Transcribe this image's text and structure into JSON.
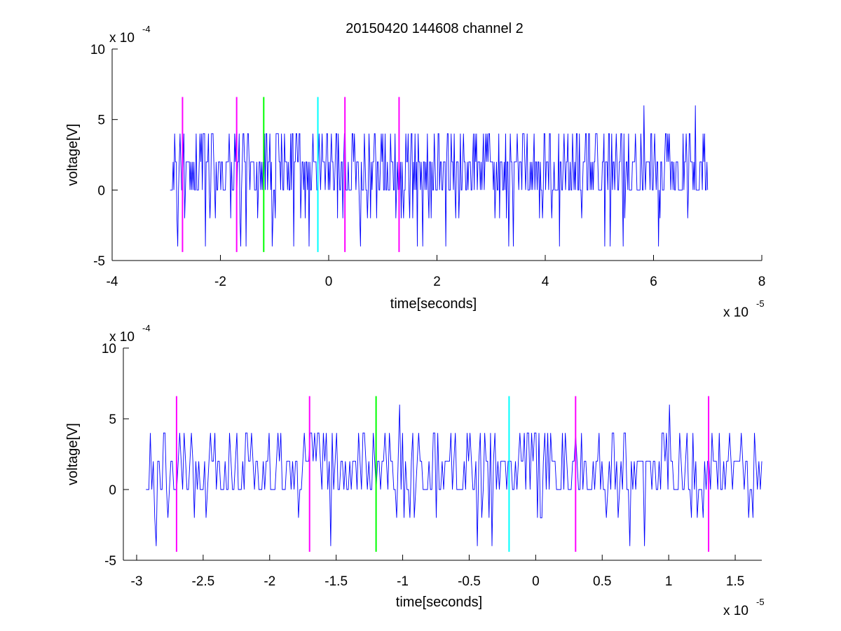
{
  "figure": {
    "title": "20150420 144608 channel 2",
    "background": "#ffffff"
  },
  "chart_data": [
    {
      "type": "line",
      "title": "20150420 144608 channel 2",
      "xlabel": "time[seconds]",
      "ylabel": "voltage[V]",
      "x_exponent_label": "x 10",
      "x_exponent": "-5",
      "y_exponent_label": "x 10",
      "y_exponent": "-4",
      "xlim": [
        -4e-05,
        8e-05
      ],
      "ylim": [
        -0.0005,
        0.001
      ],
      "xticks": [
        -4e-05,
        -2e-05,
        0,
        2e-05,
        4e-05,
        6e-05,
        8e-05
      ],
      "xticklabels": [
        "-4",
        "-2",
        "0",
        "2",
        "4",
        "6",
        "8"
      ],
      "yticks": [
        -0.0005,
        0,
        0.0005,
        0.001
      ],
      "yticklabels": [
        "-5",
        "0",
        "5",
        "10"
      ],
      "grid": false,
      "series": [
        {
          "color": "#0000ff",
          "x_start": -2.93e-05,
          "x_end": 7e-05,
          "values_description_free": true,
          "levels": [
            -0.0004,
            -0.0002,
            0,
            0.0002,
            0.0004,
            0.0006
          ]
        }
      ],
      "markers": [
        {
          "x": -2.7e-05,
          "color": "#ff00ff",
          "y_range": [
            -0.00044,
            0.00066
          ]
        },
        {
          "x": -1.7e-05,
          "color": "#ff00ff",
          "y_range": [
            -0.00044,
            0.00066
          ]
        },
        {
          "x": -1.2e-05,
          "color": "#00ff00",
          "y_range": [
            -0.00044,
            0.00066
          ]
        },
        {
          "x": -2e-06,
          "color": "#00ffff",
          "y_range": [
            -0.00044,
            0.00066
          ]
        },
        {
          "x": 3e-06,
          "color": "#ff00ff",
          "y_range": [
            -0.00044,
            0.00066
          ]
        },
        {
          "x": 1.3e-05,
          "color": "#ff00ff",
          "y_range": [
            -0.00044,
            0.00066
          ]
        }
      ]
    },
    {
      "type": "line",
      "title": "",
      "xlabel": "time[seconds]",
      "ylabel": "voltage[V]",
      "x_exponent_label": "x 10",
      "x_exponent": "-5",
      "y_exponent_label": "x 10",
      "y_exponent": "-4",
      "xlim": [
        -3.1e-05,
        1.7e-05
      ],
      "ylim": [
        -0.0005,
        0.001
      ],
      "xticks": [
        -3e-05,
        -2.5e-05,
        -2e-05,
        -1.5e-05,
        -1e-05,
        -5e-06,
        0,
        5e-06,
        1e-05,
        1.5e-05
      ],
      "xticklabels": [
        "-3",
        "-2.5",
        "-2",
        "-1.5",
        "-1",
        "-0.5",
        "0",
        "0.5",
        "1",
        "1.5"
      ],
      "yticks": [
        -0.0005,
        0,
        0.0005,
        0.001
      ],
      "yticklabels": [
        "-5",
        "0",
        "5",
        "10"
      ],
      "grid": false,
      "series": [
        {
          "color": "#0000ff",
          "x_start": -2.93e-05,
          "x_end": 1.7e-05,
          "levels": [
            -0.0004,
            -0.0002,
            0,
            0.0002,
            0.0004,
            0.0006
          ]
        }
      ],
      "markers": [
        {
          "x": -2.7e-05,
          "color": "#ff00ff",
          "y_range": [
            -0.00044,
            0.00066
          ]
        },
        {
          "x": -1.7e-05,
          "color": "#ff00ff",
          "y_range": [
            -0.00044,
            0.00066
          ]
        },
        {
          "x": -1.2e-05,
          "color": "#00ff00",
          "y_range": [
            -0.00044,
            0.00066
          ]
        },
        {
          "x": -2e-06,
          "color": "#00ffff",
          "y_range": [
            -0.00044,
            0.00066
          ]
        },
        {
          "x": 3e-06,
          "color": "#ff00ff",
          "y_range": [
            -0.00044,
            0.00066
          ]
        },
        {
          "x": 1.3e-05,
          "color": "#ff00ff",
          "y_range": [
            -0.00044,
            0.00066
          ]
        }
      ]
    }
  ]
}
